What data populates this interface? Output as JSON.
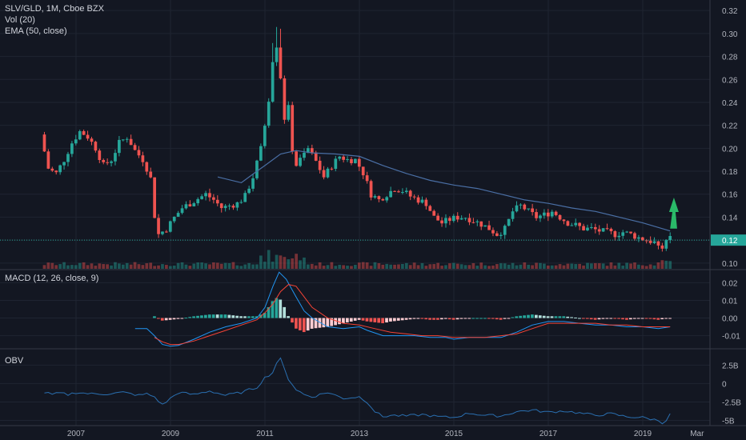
{
  "header": {
    "symbol_line": "SLV/GLD, 1M, Cboe BZX",
    "volume_label": "Vol (20)",
    "ema_label": "EMA (50, close)"
  },
  "panes": {
    "macd_label": "MACD (12, 26, close, 9)",
    "obv_label": "OBV"
  },
  "colors": {
    "background": "#131722",
    "grid": "#1f2431",
    "up": "#26a69a",
    "down": "#ef5350",
    "ema": "#4a6fa5",
    "macd_line": "#2196f3",
    "signal_line": "#f44336",
    "obv_line": "#2a6fb0",
    "price_tag": "#26a69a",
    "forecast_arrow": "#2ecc71"
  },
  "chart_data": {
    "type": "candlestick",
    "x_tick_labels": [
      "2007",
      "2009",
      "2011",
      "2013",
      "2015",
      "2017",
      "2019",
      "Mar"
    ],
    "price_axis": {
      "ylim": [
        0.095,
        0.325
      ],
      "ticks": [
        "0.32",
        "0.30",
        "0.28",
        "0.26",
        "0.24",
        "0.22",
        "0.20",
        "0.18",
        "0.16",
        "0.14",
        "0.12",
        "0.10"
      ]
    },
    "current_price_label": "0.12",
    "current_price": 0.12,
    "macd_axis": {
      "ylim": [
        -0.017,
        0.027
      ],
      "ticks": [
        "0.02",
        "0.01",
        "0.00",
        "-0.01"
      ]
    },
    "obv_axis": {
      "ylim": [
        -5.7,
        4.6
      ],
      "ticks": [
        "2.5B",
        "0",
        "-2.5B",
        "-5B"
      ]
    },
    "price_points": [
      [
        2006.33,
        0.212
      ],
      [
        2006.5,
        0.182
      ],
      [
        2006.66,
        0.178
      ],
      [
        2006.83,
        0.19
      ],
      [
        2007.0,
        0.205
      ],
      [
        2007.17,
        0.215
      ],
      [
        2007.33,
        0.21
      ],
      [
        2007.5,
        0.2
      ],
      [
        2007.66,
        0.185
      ],
      [
        2007.83,
        0.19
      ],
      [
        2008.0,
        0.205
      ],
      [
        2008.17,
        0.21
      ],
      [
        2008.33,
        0.198
      ],
      [
        2008.5,
        0.19
      ],
      [
        2008.66,
        0.175
      ],
      [
        2008.75,
        0.14
      ],
      [
        2008.83,
        0.125
      ],
      [
        2009.0,
        0.13
      ],
      [
        2009.17,
        0.14
      ],
      [
        2009.33,
        0.148
      ],
      [
        2009.5,
        0.152
      ],
      [
        2009.66,
        0.156
      ],
      [
        2009.83,
        0.16
      ],
      [
        2010.0,
        0.155
      ],
      [
        2010.17,
        0.148
      ],
      [
        2010.33,
        0.15
      ],
      [
        2010.5,
        0.152
      ],
      [
        2010.66,
        0.158
      ],
      [
        2010.83,
        0.175
      ],
      [
        2011.0,
        0.2
      ],
      [
        2011.17,
        0.245
      ],
      [
        2011.3,
        0.3
      ],
      [
        2011.42,
        0.26
      ],
      [
        2011.5,
        0.225
      ],
      [
        2011.58,
        0.235
      ],
      [
        2011.66,
        0.2
      ],
      [
        2011.75,
        0.185
      ],
      [
        2011.83,
        0.19
      ],
      [
        2012.0,
        0.2
      ],
      [
        2012.17,
        0.188
      ],
      [
        2012.33,
        0.175
      ],
      [
        2012.5,
        0.185
      ],
      [
        2012.66,
        0.193
      ],
      [
        2012.83,
        0.19
      ],
      [
        2013.0,
        0.19
      ],
      [
        2013.17,
        0.178
      ],
      [
        2013.33,
        0.16
      ],
      [
        2013.5,
        0.155
      ],
      [
        2013.66,
        0.16
      ],
      [
        2013.83,
        0.165
      ],
      [
        2014.0,
        0.163
      ],
      [
        2014.17,
        0.158
      ],
      [
        2014.33,
        0.155
      ],
      [
        2014.5,
        0.152
      ],
      [
        2014.66,
        0.14
      ],
      [
        2014.83,
        0.135
      ],
      [
        2015.0,
        0.138
      ],
      [
        2015.17,
        0.14
      ],
      [
        2015.33,
        0.14
      ],
      [
        2015.5,
        0.137
      ],
      [
        2015.66,
        0.134
      ],
      [
        2015.83,
        0.13
      ],
      [
        2016.0,
        0.125
      ],
      [
        2016.17,
        0.13
      ],
      [
        2016.33,
        0.145
      ],
      [
        2016.5,
        0.15
      ],
      [
        2016.66,
        0.145
      ],
      [
        2016.83,
        0.14
      ],
      [
        2017.0,
        0.142
      ],
      [
        2017.17,
        0.145
      ],
      [
        2017.33,
        0.14
      ],
      [
        2017.5,
        0.135
      ],
      [
        2017.66,
        0.133
      ],
      [
        2017.83,
        0.13
      ],
      [
        2018.0,
        0.13
      ],
      [
        2018.17,
        0.128
      ],
      [
        2018.33,
        0.127
      ],
      [
        2018.5,
        0.125
      ],
      [
        2018.66,
        0.127
      ],
      [
        2018.83,
        0.125
      ],
      [
        2019.0,
        0.122
      ],
      [
        2019.17,
        0.12
      ],
      [
        2019.33,
        0.118
      ],
      [
        2019.42,
        0.112
      ],
      [
        2019.5,
        0.115
      ],
      [
        2019.58,
        0.122
      ]
    ],
    "ema_points": [
      [
        2010.0,
        0.175
      ],
      [
        2010.5,
        0.17
      ],
      [
        2010.83,
        0.18
      ],
      [
        2011.0,
        0.185
      ],
      [
        2011.33,
        0.195
      ],
      [
        2011.66,
        0.198
      ],
      [
        2012.0,
        0.196
      ],
      [
        2012.5,
        0.195
      ],
      [
        2013.0,
        0.193
      ],
      [
        2013.5,
        0.185
      ],
      [
        2014.0,
        0.178
      ],
      [
        2014.5,
        0.172
      ],
      [
        2015.0,
        0.168
      ],
      [
        2015.5,
        0.165
      ],
      [
        2016.0,
        0.16
      ],
      [
        2016.5,
        0.155
      ],
      [
        2017.0,
        0.152
      ],
      [
        2017.5,
        0.148
      ],
      [
        2018.0,
        0.145
      ],
      [
        2018.5,
        0.14
      ],
      [
        2019.0,
        0.135
      ],
      [
        2019.58,
        0.128
      ]
    ],
    "forecast_arrow": {
      "from": [
        2019.58,
        0.13
      ],
      "to": [
        2019.66,
        0.157
      ],
      "width": 0.01
    },
    "macd_points": [
      [
        2008.25,
        -0.006
      ],
      [
        2008.5,
        -0.006
      ],
      [
        2008.66,
        -0.01
      ],
      [
        2008.83,
        -0.015
      ],
      [
        2009.0,
        -0.016
      ],
      [
        2009.17,
        -0.0155
      ],
      [
        2009.5,
        -0.012
      ],
      [
        2009.83,
        -0.008
      ],
      [
        2010.17,
        -0.005
      ],
      [
        2010.5,
        -0.003
      ],
      [
        2010.83,
        0.0
      ],
      [
        2011.0,
        0.006
      ],
      [
        2011.17,
        0.018
      ],
      [
        2011.3,
        0.026
      ],
      [
        2011.45,
        0.022
      ],
      [
        2011.66,
        0.012
      ],
      [
        2011.83,
        0.004
      ],
      [
        2012.0,
        0.0
      ],
      [
        2012.33,
        -0.005
      ],
      [
        2012.66,
        -0.006
      ],
      [
        2013.0,
        -0.005
      ],
      [
        2013.17,
        -0.007
      ],
      [
        2013.5,
        -0.01
      ],
      [
        2013.83,
        -0.01
      ],
      [
        2014.17,
        -0.01
      ],
      [
        2014.5,
        -0.011
      ],
      [
        2014.83,
        -0.011
      ],
      [
        2015.0,
        -0.012
      ],
      [
        2015.33,
        -0.011
      ],
      [
        2015.66,
        -0.011
      ],
      [
        2016.0,
        -0.011
      ],
      [
        2016.33,
        -0.008
      ],
      [
        2016.66,
        -0.004
      ],
      [
        2017.0,
        -0.002
      ],
      [
        2017.33,
        -0.002
      ],
      [
        2017.66,
        -0.003
      ],
      [
        2018.0,
        -0.004
      ],
      [
        2018.33,
        -0.004
      ],
      [
        2018.66,
        -0.005
      ],
      [
        2019.0,
        -0.005
      ],
      [
        2019.33,
        -0.006
      ],
      [
        2019.58,
        -0.005
      ]
    ],
    "signal_points": [
      [
        2008.66,
        -0.011
      ],
      [
        2008.83,
        -0.0135
      ],
      [
        2009.0,
        -0.015
      ],
      [
        2009.17,
        -0.015
      ],
      [
        2009.5,
        -0.013
      ],
      [
        2009.83,
        -0.01
      ],
      [
        2010.17,
        -0.007
      ],
      [
        2010.5,
        -0.004
      ],
      [
        2010.83,
        -0.001
      ],
      [
        2011.0,
        0.003
      ],
      [
        2011.17,
        0.008
      ],
      [
        2011.33,
        0.015
      ],
      [
        2011.5,
        0.019
      ],
      [
        2011.66,
        0.018
      ],
      [
        2011.83,
        0.012
      ],
      [
        2012.0,
        0.006
      ],
      [
        2012.33,
        0.0
      ],
      [
        2012.66,
        -0.003
      ],
      [
        2013.0,
        -0.004
      ],
      [
        2013.33,
        -0.006
      ],
      [
        2013.66,
        -0.008
      ],
      [
        2014.0,
        -0.009
      ],
      [
        2014.33,
        -0.01
      ],
      [
        2014.66,
        -0.01
      ],
      [
        2015.0,
        -0.011
      ],
      [
        2015.33,
        -0.011
      ],
      [
        2015.66,
        -0.011
      ],
      [
        2016.0,
        -0.01
      ],
      [
        2016.33,
        -0.009
      ],
      [
        2016.66,
        -0.006
      ],
      [
        2017.0,
        -0.003
      ],
      [
        2017.33,
        -0.003
      ],
      [
        2017.66,
        -0.003
      ],
      [
        2018.0,
        -0.003
      ],
      [
        2018.33,
        -0.004
      ],
      [
        2018.66,
        -0.004
      ],
      [
        2019.0,
        -0.005
      ],
      [
        2019.33,
        -0.005
      ],
      [
        2019.58,
        -0.005
      ]
    ],
    "obv_points": [
      [
        2006.33,
        -1.2
      ],
      [
        2006.5,
        -1.5
      ],
      [
        2006.66,
        -1.3
      ],
      [
        2006.83,
        -1.5
      ],
      [
        2007.0,
        -1.2
      ],
      [
        2007.33,
        -1.4
      ],
      [
        2007.66,
        -1.4
      ],
      [
        2008.0,
        -1.2
      ],
      [
        2008.33,
        -1.6
      ],
      [
        2008.5,
        -1.4
      ],
      [
        2008.66,
        -1.8
      ],
      [
        2008.83,
        -2.9
      ],
      [
        2009.0,
        -2.0
      ],
      [
        2009.17,
        -1.2
      ],
      [
        2009.5,
        -1.5
      ],
      [
        2009.83,
        -1.0
      ],
      [
        2010.17,
        -1.6
      ],
      [
        2010.5,
        -1.2
      ],
      [
        2010.83,
        -0.5
      ],
      [
        2011.0,
        0.8
      ],
      [
        2011.17,
        1.5
      ],
      [
        2011.3,
        3.8
      ],
      [
        2011.42,
        1.8
      ],
      [
        2011.5,
        0.6
      ],
      [
        2011.66,
        -0.8
      ],
      [
        2011.83,
        -1.5
      ],
      [
        2012.0,
        -1.8
      ],
      [
        2012.33,
        -1.2
      ],
      [
        2012.66,
        -2.0
      ],
      [
        2013.0,
        -1.8
      ],
      [
        2013.17,
        -2.5
      ],
      [
        2013.33,
        -3.8
      ],
      [
        2013.5,
        -4.5
      ],
      [
        2013.66,
        -4.3
      ],
      [
        2014.0,
        -4.4
      ],
      [
        2014.33,
        -4.2
      ],
      [
        2014.66,
        -4.5
      ],
      [
        2015.0,
        -4.6
      ],
      [
        2015.33,
        -4.0
      ],
      [
        2015.66,
        -4.3
      ],
      [
        2016.0,
        -4.4
      ],
      [
        2016.33,
        -3.8
      ],
      [
        2016.66,
        -3.6
      ],
      [
        2017.0,
        -3.9
      ],
      [
        2017.33,
        -3.7
      ],
      [
        2017.66,
        -4.0
      ],
      [
        2018.0,
        -4.3
      ],
      [
        2018.33,
        -4.1
      ],
      [
        2018.66,
        -4.5
      ],
      [
        2019.0,
        -4.6
      ],
      [
        2019.33,
        -5.0
      ],
      [
        2019.45,
        -5.4
      ],
      [
        2019.58,
        -4.2
      ]
    ]
  }
}
